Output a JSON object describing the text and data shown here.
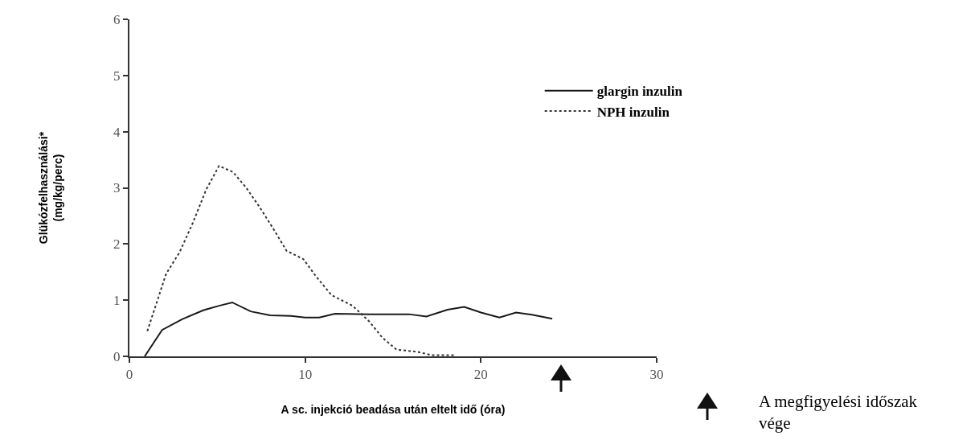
{
  "chart_data": {
    "type": "line",
    "xlabel": "A sc. injekció beadása után eltelt idő (óra)",
    "ylabel": "Glükózfelhasználási*\n(mg/kg/perc)",
    "xlim": [
      0,
      30
    ],
    "xticks": [
      0,
      10,
      20,
      30
    ],
    "ylim": [
      0,
      6
    ],
    "yticks": [
      0,
      1,
      2,
      3,
      4,
      5,
      6
    ],
    "grid": false,
    "legend": "right",
    "marker": "none",
    "series": [
      {
        "name": "glargin inzulin",
        "color": "#1a1a1a",
        "line_style": "solid",
        "x": [
          0.87,
          1.86,
          3.0,
          4.2,
          5.1,
          5.85,
          6.9,
          8.0,
          9.2,
          10.0,
          10.8,
          11.7,
          13.65,
          15.9,
          16.9,
          18.1,
          19.05,
          20.0,
          21.05,
          22.0,
          22.9,
          24.06
        ],
        "values": [
          0,
          0.47,
          0.66,
          0.82,
          0.9,
          0.96,
          0.8,
          0.73,
          0.72,
          0.69,
          0.69,
          0.76,
          0.75,
          0.75,
          0.71,
          0.83,
          0.88,
          0.78,
          0.69,
          0.78,
          0.74,
          0.67
        ]
      },
      {
        "name": "NPH inzulin",
        "color": "#333333",
        "line_style": "dotted",
        "x": [
          1.02,
          2.09,
          2.85,
          3.6,
          4.37,
          5.1,
          5.9,
          6.65,
          7.4,
          8.17,
          8.94,
          9.9,
          10.6,
          11.5,
          12.7,
          13.65,
          14.4,
          15.2,
          16.4,
          17.2,
          18.5
        ],
        "values": [
          0.45,
          1.47,
          1.85,
          2.37,
          2.97,
          3.39,
          3.28,
          3.0,
          2.66,
          2.28,
          1.88,
          1.73,
          1.43,
          1.09,
          0.9,
          0.62,
          0.33,
          0.12,
          0.08,
          0.02,
          0.02
        ]
      }
    ],
    "annotations": [
      "A megfigyelési időszak\nvége"
    ]
  }
}
